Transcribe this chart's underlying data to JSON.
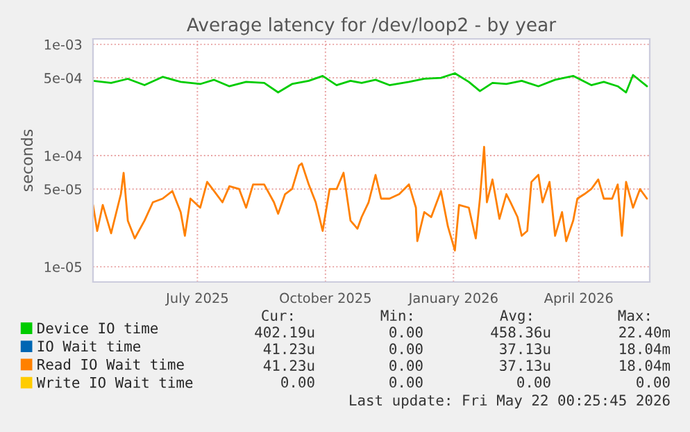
{
  "chart_data": {
    "type": "line",
    "title": "Average latency for /dev/loop2 - by year",
    "ylabel": "seconds",
    "log": "y",
    "grid": true,
    "legend": "bottom",
    "line_style": "solid",
    "xlim": [
      "2025-04-17",
      "2026-05-22"
    ],
    "xticks": [
      {
        "value": "2025-07-01",
        "label": "July 2025"
      },
      {
        "value": "2025-10-01",
        "label": "October 2025"
      },
      {
        "value": "2026-01-01",
        "label": "January 2026"
      },
      {
        "value": "2026-04-01",
        "label": "April 2026"
      }
    ],
    "ylim": [
      7.3e-06,
      0.00112
    ],
    "yticks": [
      {
        "value": 1e-05,
        "label": "1e-05"
      },
      {
        "value": 5e-05,
        "label": "5e-05"
      },
      {
        "value": 0.0001,
        "label": "1e-04"
      },
      {
        "value": 0.0005,
        "label": "5e-04"
      },
      {
        "value": 0.001,
        "label": "1e-03"
      }
    ],
    "series": [
      {
        "name": "Device IO time",
        "color": "#00cc00",
        "x": [
          "2025-04-17",
          "2025-04-30",
          "2025-05-12",
          "2025-05-24",
          "2025-06-06",
          "2025-06-19",
          "2025-07-03",
          "2025-07-13",
          "2025-07-24",
          "2025-08-05",
          "2025-08-18",
          "2025-08-28",
          "2025-09-07",
          "2025-09-19",
          "2025-09-29",
          "2025-10-09",
          "2025-10-19",
          "2025-10-27",
          "2025-11-06",
          "2025-11-16",
          "2025-11-30",
          "2025-12-11",
          "2025-12-23",
          "2026-01-02",
          "2026-01-12",
          "2026-01-20",
          "2026-01-29",
          "2026-02-08",
          "2026-02-19",
          "2026-03-03",
          "2026-03-15",
          "2026-03-28",
          "2026-04-10",
          "2026-04-19",
          "2026-04-29",
          "2026-05-05",
          "2026-05-10",
          "2026-05-20"
        ],
        "values": [
          0.00047,
          0.00045,
          0.00049,
          0.00043,
          0.00051,
          0.00046,
          0.00044,
          0.00048,
          0.00042,
          0.00046,
          0.00045,
          0.00037,
          0.00044,
          0.00047,
          0.00052,
          0.00043,
          0.00047,
          0.00045,
          0.00048,
          0.00043,
          0.00046,
          0.00049,
          0.0005,
          0.00055,
          0.00046,
          0.00038,
          0.00045,
          0.00044,
          0.00047,
          0.00042,
          0.00048,
          0.00052,
          0.00043,
          0.00046,
          0.00042,
          0.00037,
          0.00053,
          0.00042
        ]
      },
      {
        "name": "IO Wait time",
        "color": "#0066b3"
      },
      {
        "name": "Read IO Wait time",
        "color": "#ff8000",
        "x": [
          "2025-04-17",
          "2025-04-20",
          "2025-04-24",
          "2025-04-30",
          "2025-05-07",
          "2025-05-09",
          "2025-05-12",
          "2025-05-17",
          "2025-05-24",
          "2025-05-30",
          "2025-06-06",
          "2025-06-13",
          "2025-06-19",
          "2025-06-22",
          "2025-06-26",
          "2025-07-03",
          "2025-07-08",
          "2025-07-13",
          "2025-07-19",
          "2025-07-24",
          "2025-07-31",
          "2025-08-05",
          "2025-08-10",
          "2025-08-18",
          "2025-08-25",
          "2025-08-28",
          "2025-09-02",
          "2025-09-07",
          "2025-09-12",
          "2025-09-14",
          "2025-09-19",
          "2025-09-24",
          "2025-09-29",
          "2025-10-04",
          "2025-10-09",
          "2025-10-14",
          "2025-10-19",
          "2025-10-24",
          "2025-10-27",
          "2025-11-01",
          "2025-11-06",
          "2025-11-10",
          "2025-11-16",
          "2025-11-23",
          "2025-11-30",
          "2025-12-05",
          "2025-12-06",
          "2025-12-11",
          "2025-12-16",
          "2025-12-23",
          "2025-12-28",
          "2026-01-02",
          "2026-01-05",
          "2026-01-12",
          "2026-01-17",
          "2026-01-20",
          "2026-01-23",
          "2026-01-25",
          "2026-01-29",
          "2026-02-03",
          "2026-02-08",
          "2026-02-11",
          "2026-02-16",
          "2026-02-19",
          "2026-02-23",
          "2026-02-26",
          "2026-03-03",
          "2026-03-06",
          "2026-03-11",
          "2026-03-15",
          "2026-03-20",
          "2026-03-23",
          "2026-03-28",
          "2026-03-31",
          "2026-04-05",
          "2026-04-10",
          "2026-04-15",
          "2026-04-19",
          "2026-04-25",
          "2026-04-29",
          "2026-05-02",
          "2026-05-05",
          "2026-05-10",
          "2026-05-15",
          "2026-05-20"
        ],
        "values": [
          3.6e-05,
          2.1e-05,
          3.6e-05,
          2e-05,
          4.5e-05,
          7e-05,
          2.6e-05,
          1.8e-05,
          2.6e-05,
          3.8e-05,
          4.1e-05,
          4.8e-05,
          3.1e-05,
          1.9e-05,
          4.1e-05,
          3.4e-05,
          5.8e-05,
          4.8e-05,
          3.8e-05,
          5.3e-05,
          5e-05,
          3.4e-05,
          5.5e-05,
          5.5e-05,
          3.8e-05,
          3e-05,
          4.5e-05,
          5e-05,
          8.1e-05,
          8.5e-05,
          5.5e-05,
          3.8e-05,
          2.1e-05,
          5e-05,
          5e-05,
          7e-05,
          2.6e-05,
          2.2e-05,
          2.8e-05,
          3.8e-05,
          6.7e-05,
          4.1e-05,
          4.1e-05,
          4.5e-05,
          5.5e-05,
          3.4e-05,
          1.7e-05,
          3.1e-05,
          2.8e-05,
          4.8e-05,
          2.3e-05,
          1.4e-05,
          3.6e-05,
          3.4e-05,
          1.8e-05,
          4.1e-05,
          0.00012,
          3.8e-05,
          6.1e-05,
          2.7e-05,
          4.5e-05,
          3.8e-05,
          2.8e-05,
          1.9e-05,
          2.1e-05,
          5.8e-05,
          6.7e-05,
          3.8e-05,
          5.8e-05,
          1.9e-05,
          3.1e-05,
          1.7e-05,
          2.6e-05,
          4.1e-05,
          4.5e-05,
          5e-05,
          6.1e-05,
          4.1e-05,
          4.1e-05,
          5.5e-05,
          1.9e-05,
          5.8e-05,
          3.4e-05,
          5e-05,
          4.1e-05
        ]
      },
      {
        "name": "Write IO Wait time",
        "color": "#ffcc00"
      }
    ],
    "annotations": [
      "Cur:",
      "Min:",
      "Avg:",
      "Max:",
      "402.19u",
      "0.00",
      "458.36u",
      "22.40m",
      "41.23u",
      "0.00",
      "37.13u",
      "18.04m",
      "41.23u",
      "0.00",
      "37.13u",
      "18.04m",
      "0.00",
      "0.00",
      "0.00",
      "0.00",
      "Last update: Fri May 22 00:25:45 2026"
    ]
  }
}
